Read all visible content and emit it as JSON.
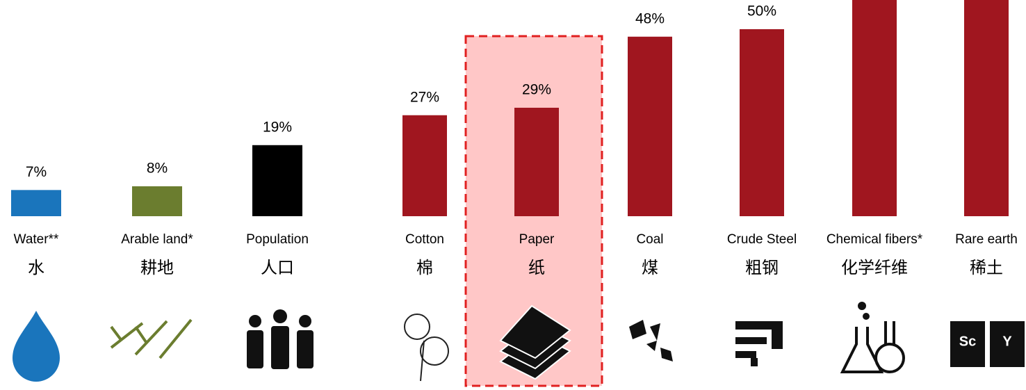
{
  "chart_data": {
    "type": "bar",
    "categories": [
      "Water**",
      "Arable land*",
      "Population",
      "Cotton",
      "Paper",
      "Coal",
      "Crude Steel",
      "Chemical fibers*",
      "Rare earth"
    ],
    "categories_zh": [
      "水",
      "耕地",
      "人口",
      "棉",
      "纸",
      "煤",
      "粗钢",
      "化学纤维",
      "稀土"
    ],
    "values": [
      7,
      8,
      19,
      27,
      29,
      48,
      50,
      70,
      90
    ],
    "value_labels": [
      "7%",
      "8%",
      "19%",
      "27%",
      "29%",
      "48%",
      "50%",
      null,
      null
    ],
    "colors": [
      "#1a75bc",
      "#6b7d2f",
      "#000000",
      "#a0161f",
      "#a0161f",
      "#a0161f",
      "#a0161f",
      "#a0161f",
      "#a0161f"
    ],
    "highlight": "Paper"
  }
}
